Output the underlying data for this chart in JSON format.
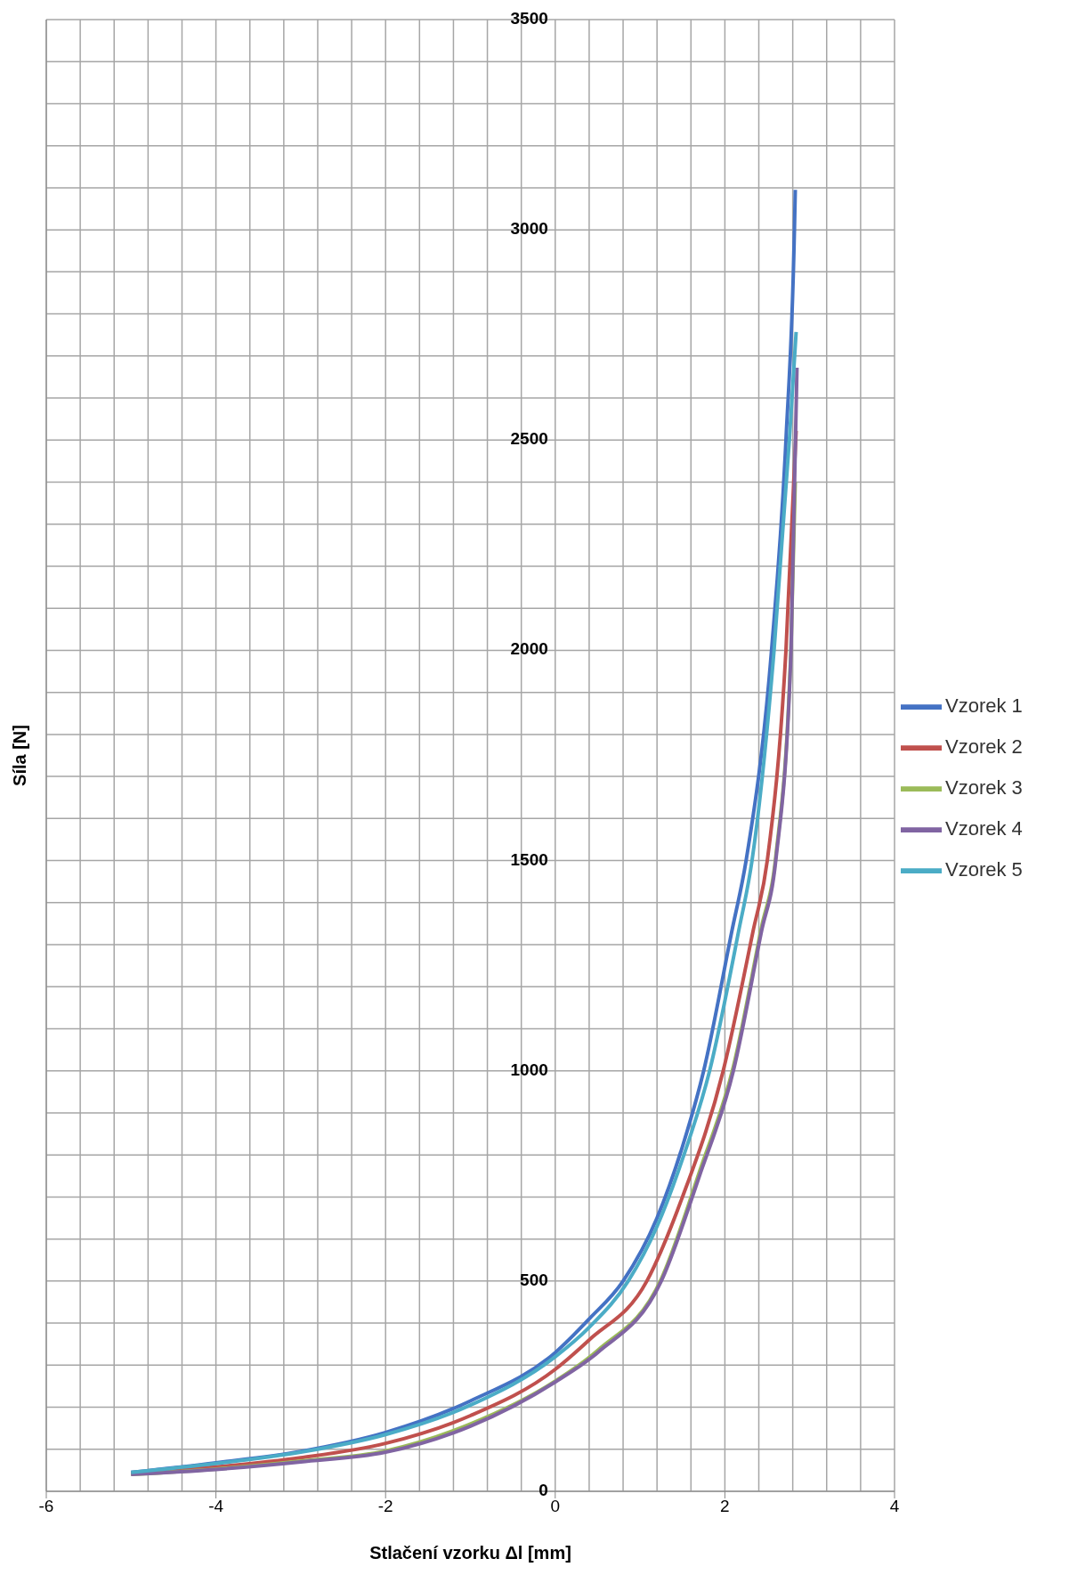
{
  "chart_data": {
    "type": "line",
    "xlabel": "Stlačení vzorku Δl [mm]",
    "ylabel": "Síla [N]",
    "xlim": [
      -6,
      4
    ],
    "xticks": [
      -6,
      -4,
      -2,
      0,
      2,
      4
    ],
    "ylim": [
      0,
      3500
    ],
    "yticks": [
      0,
      500,
      1000,
      1500,
      2000,
      2500,
      3000,
      3500
    ],
    "grid": true,
    "legend": "right",
    "marker": "none",
    "line_style": "solid",
    "series": [
      {
        "name": "Vzorek 1",
        "color": "#4472c4",
        "x": [
          -5,
          -4,
          -3,
          -2,
          -1,
          0,
          0.4,
          0.8,
          1.2,
          1.5,
          1.75,
          2.08,
          2.25,
          2.55,
          2.72,
          2.82,
          2.83
        ],
        "values": [
          45,
          68,
          95,
          140,
          215,
          330,
          410,
          500,
          650,
          820,
          1000,
          1330,
          1500,
          2000,
          2500,
          3000,
          3095
        ]
      },
      {
        "name": "Vzorek 2",
        "color": "#c0504d",
        "x": [
          -5,
          -4,
          -3,
          -2,
          -1,
          0,
          0.4,
          1.08,
          1.5,
          1.98,
          2.33,
          2.5,
          2.72,
          2.84
        ],
        "values": [
          42,
          58,
          80,
          114,
          180,
          290,
          360,
          500,
          700,
          1000,
          1330,
          1500,
          2000,
          2522
        ]
      },
      {
        "name": "Vzorek 3",
        "color": "#9bbb59",
        "x": [
          -5,
          -4,
          -3,
          -2,
          -1,
          0,
          0.5,
          1.25,
          1.7,
          2.1,
          2.43,
          2.6,
          2.78,
          2.83
        ],
        "values": [
          40,
          53,
          72,
          96,
          160,
          262,
          335,
          505,
          760,
          1010,
          1340,
          1510,
          2010,
          2400
        ]
      },
      {
        "name": "Vzorek 4",
        "color": "#8064a2",
        "x": [
          -5,
          -4,
          -3,
          -2,
          -1,
          0,
          0.5,
          1.25,
          1.7,
          2.1,
          2.43,
          2.6,
          2.78,
          2.85
        ],
        "values": [
          40,
          52,
          70,
          93,
          155,
          260,
          330,
          500,
          750,
          1000,
          1330,
          1500,
          2000,
          2672
        ]
      },
      {
        "name": "Vzorek 5",
        "color": "#4bacc6",
        "x": [
          -5,
          -4,
          -3,
          -2,
          -1,
          0,
          0.4,
          0.86,
          1.2,
          1.5,
          1.82,
          2.16,
          2.32,
          2.58,
          2.76,
          2.84
        ],
        "values": [
          45,
          66,
          93,
          135,
          205,
          320,
          390,
          500,
          630,
          790,
          1000,
          1330,
          1500,
          2000,
          2500,
          2757
        ]
      }
    ]
  }
}
